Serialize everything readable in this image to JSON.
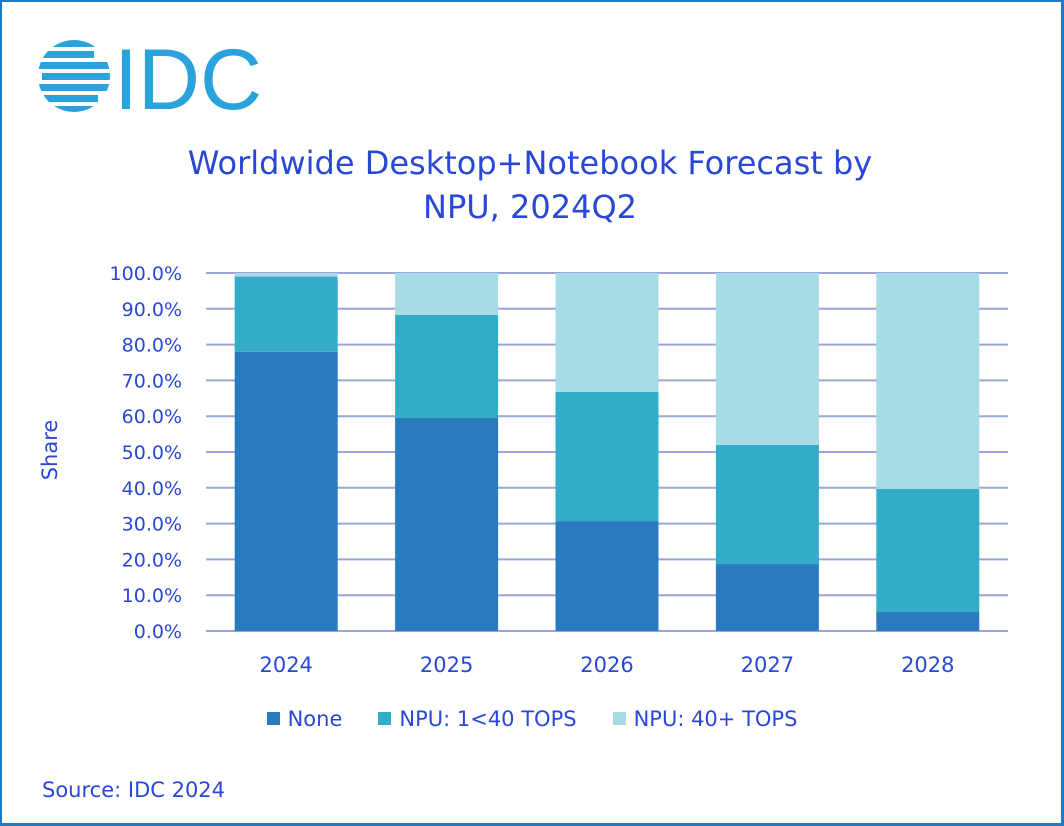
{
  "brand": {
    "logo_text": "IDC"
  },
  "chart_data": {
    "type": "bar",
    "stacked": true,
    "percent": true,
    "title_lines": [
      "Worldwide Desktop+Notebook Forecast by",
      "NPU, 2024Q2"
    ],
    "xlabel": "",
    "ylabel": "Share",
    "ylim": [
      0,
      100
    ],
    "yticks": [
      0,
      10,
      20,
      30,
      40,
      50,
      60,
      70,
      80,
      90,
      100
    ],
    "ytick_labels": [
      "0.0%",
      "10.0%",
      "20.0%",
      "30.0%",
      "40.0%",
      "50.0%",
      "60.0%",
      "70.0%",
      "80.0%",
      "90.0%",
      "100.0%"
    ],
    "grid": true,
    "categories": [
      "2024",
      "2025",
      "2026",
      "2027",
      "2028"
    ],
    "series": [
      {
        "name": "None",
        "color": "#2a7bbd",
        "values": [
          78,
          59.5,
          30.7,
          18.7,
          5.3
        ]
      },
      {
        "name": "NPU: 1<40 TOPS",
        "color": "#33acc8",
        "values": [
          21,
          28.8,
          36.1,
          33.3,
          34.4
        ]
      },
      {
        "name": "NPU: 40+ TOPS",
        "color": "#a8dbe6",
        "values": [
          1,
          11.7,
          33.2,
          48,
          60.3
        ]
      }
    ],
    "legend_position": "bottom"
  },
  "source": "Source: IDC 2024"
}
